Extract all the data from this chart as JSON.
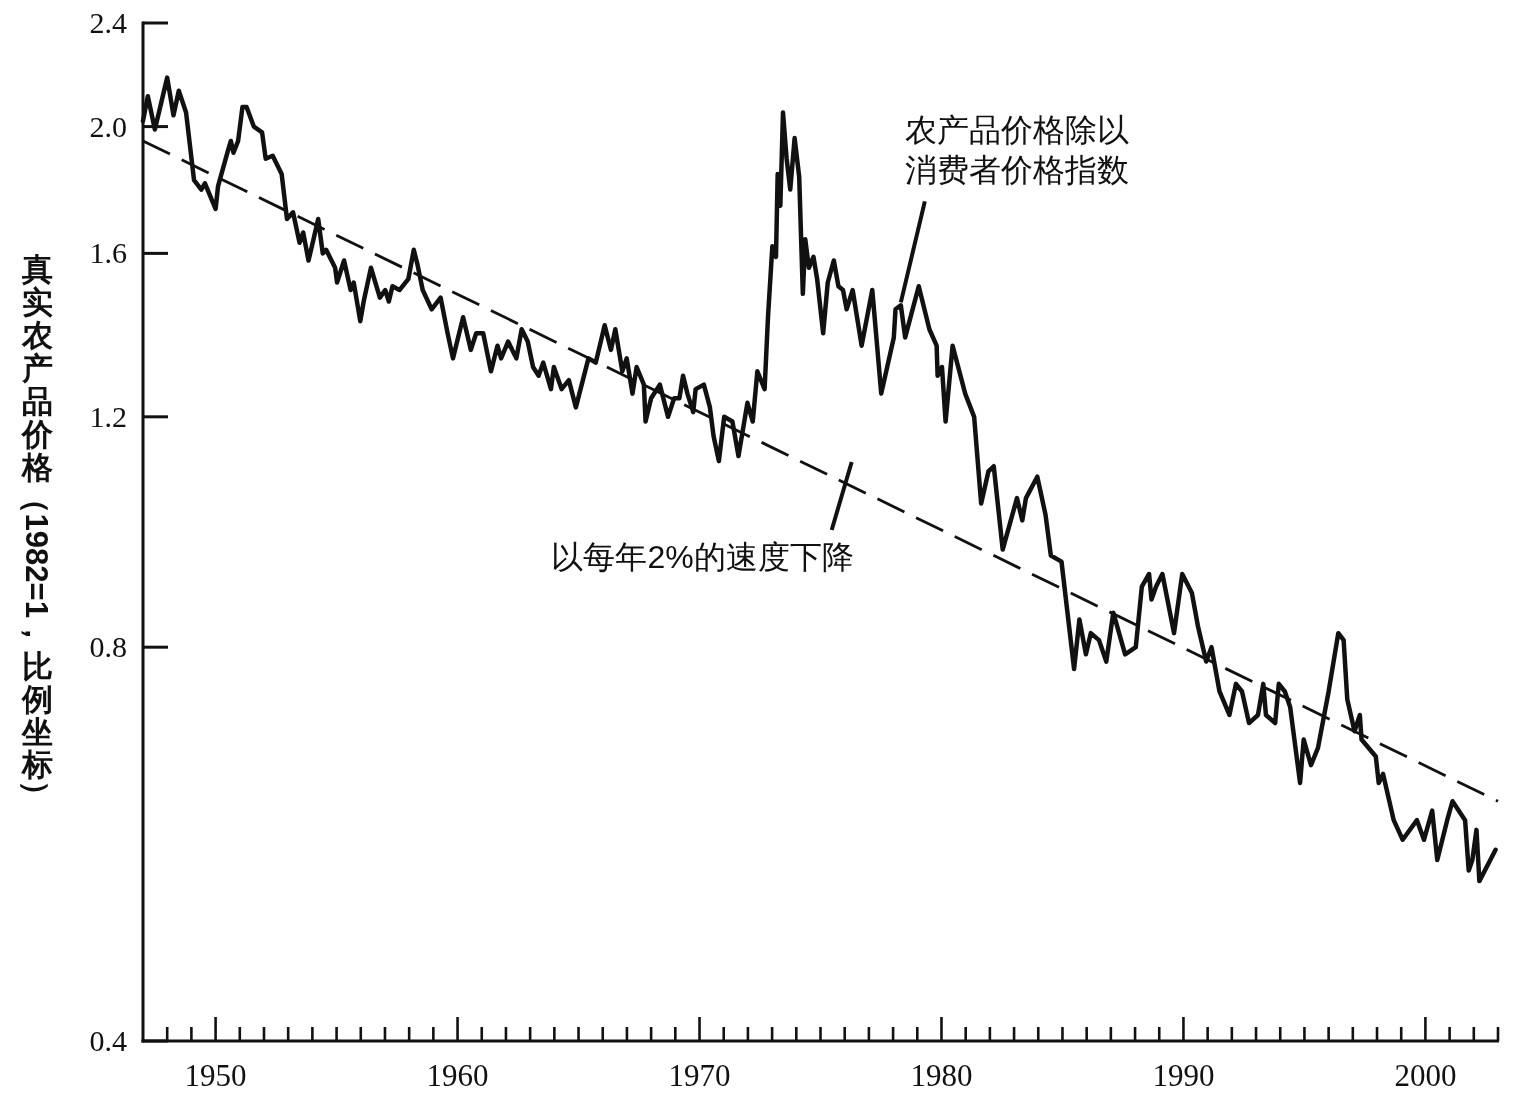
{
  "chart_data": {
    "type": "line",
    "ylabel": "真实农产品价格（1982=1，比例坐标）",
    "log": true,
    "xlim": [
      1947,
      2003
    ],
    "xticks": [
      {
        "value": 1948,
        "label": null
      },
      {
        "value": 1949,
        "label": null
      },
      1950,
      {
        "value": 1951,
        "label": null
      },
      {
        "value": 1952,
        "label": null
      },
      {
        "value": 1953,
        "label": null
      },
      {
        "value": 1954,
        "label": null
      },
      {
        "value": 1955,
        "label": null
      },
      {
        "value": 1956,
        "label": null
      },
      {
        "value": 1957,
        "label": null
      },
      {
        "value": 1958,
        "label": null
      },
      {
        "value": 1959,
        "label": null
      },
      1960,
      {
        "value": 1961,
        "label": null
      },
      {
        "value": 1962,
        "label": null
      },
      {
        "value": 1963,
        "label": null
      },
      {
        "value": 1964,
        "label": null
      },
      {
        "value": 1965,
        "label": null
      },
      {
        "value": 1966,
        "label": null
      },
      {
        "value": 1967,
        "label": null
      },
      {
        "value": 1968,
        "label": null
      },
      {
        "value": 1969,
        "label": null
      },
      1970,
      {
        "value": 1971,
        "label": null
      },
      {
        "value": 1972,
        "label": null
      },
      {
        "value": 1973,
        "label": null
      },
      {
        "value": 1974,
        "label": null
      },
      {
        "value": 1975,
        "label": null
      },
      {
        "value": 1976,
        "label": null
      },
      {
        "value": 1977,
        "label": null
      },
      {
        "value": 1978,
        "label": null
      },
      {
        "value": 1979,
        "label": null
      },
      1980,
      {
        "value": 1981,
        "label": null
      },
      {
        "value": 1982,
        "label": null
      },
      {
        "value": 1983,
        "label": null
      },
      {
        "value": 1984,
        "label": null
      },
      {
        "value": 1985,
        "label": null
      },
      {
        "value": 1986,
        "label": null
      },
      {
        "value": 1987,
        "label": null
      },
      {
        "value": 1988,
        "label": null
      },
      {
        "value": 1989,
        "label": null
      },
      1990,
      {
        "value": 1991,
        "label": null
      },
      {
        "value": 1992,
        "label": null
      },
      {
        "value": 1993,
        "label": null
      },
      {
        "value": 1994,
        "label": null
      },
      {
        "value": 1995,
        "label": null
      },
      {
        "value": 1996,
        "label": null
      },
      {
        "value": 1997,
        "label": null
      },
      {
        "value": 1998,
        "label": null
      },
      {
        "value": 1999,
        "label": null
      },
      2000,
      {
        "value": 2001,
        "label": null
      },
      {
        "value": 2002,
        "label": null
      },
      {
        "value": 2003,
        "label": null
      }
    ],
    "ylim": [
      0.4,
      2.4
    ],
    "yticks": [
      0.4,
      0.8,
      1.2,
      1.6,
      {
        "value": 2,
        "label": "2.0"
      },
      2.4
    ],
    "series": [
      {
        "color": "#111111",
        "line_style": "solid",
        "x": [
          1947.0,
          1947.2,
          1947.49,
          1948.0,
          1948.26,
          1948.48,
          1948.78,
          1949.11,
          1949.41,
          1949.56,
          1950.0,
          1950.1,
          1950.52,
          1950.63,
          1950.74,
          1950.93,
          1951.11,
          1951.28,
          1951.58,
          1951.92,
          1952.07,
          1952.36,
          1952.73,
          1952.95,
          1953.2,
          1953.47,
          1953.62,
          1953.84,
          1953.98,
          1954.24,
          1954.43,
          1954.57,
          1954.94,
          1955.02,
          1955.31,
          1955.58,
          1955.71,
          1955.98,
          1956.12,
          1956.42,
          1956.79,
          1957.01,
          1957.16,
          1957.31,
          1957.6,
          1957.97,
          1958.19,
          1958.34,
          1958.56,
          1958.93,
          1959.3,
          1959.59,
          1959.81,
          1960.23,
          1960.55,
          1960.77,
          1961.06,
          1961.38,
          1961.65,
          1961.8,
          1962.09,
          1962.43,
          1962.65,
          1962.9,
          1963.12,
          1963.35,
          1963.54,
          1963.86,
          1963.98,
          1964.3,
          1964.6,
          1964.89,
          1965.41,
          1965.71,
          1966.08,
          1966.34,
          1966.52,
          1966.81,
          1966.99,
          1967.23,
          1967.4,
          1967.7,
          1967.77,
          1968.0,
          1968.36,
          1968.7,
          1968.95,
          1969.17,
          1969.32,
          1969.5,
          1969.74,
          1969.84,
          1970.18,
          1970.43,
          1970.58,
          1970.8,
          1971.02,
          1971.36,
          1971.61,
          1971.98,
          1972.2,
          1972.39,
          1972.69,
          1972.83,
          1973.01,
          1973.16,
          1973.23,
          1973.34,
          1973.45,
          1973.6,
          1973.75,
          1973.93,
          1974.12,
          1974.27,
          1974.37,
          1974.52,
          1974.71,
          1974.86,
          1975.11,
          1975.3,
          1975.55,
          1975.74,
          1975.93,
          1976.08,
          1976.33,
          1976.7,
          1977.14,
          1977.51,
          1978.03,
          1978.1,
          1978.32,
          1978.5,
          1979.06,
          1979.5,
          1979.8,
          1979.84,
          1980.02,
          1980.17,
          1980.46,
          1980.98,
          1981.35,
          1981.64,
          1981.94,
          1982.16,
          1982.53,
          1983.12,
          1983.34,
          1983.49,
          1983.96,
          1984.3,
          1984.52,
          1984.96,
          1985.48,
          1985.7,
          1985.97,
          1986.17,
          1986.51,
          1986.81,
          1987.1,
          1987.59,
          1988.03,
          1988.28,
          1988.58,
          1988.68,
          1988.87,
          1989.13,
          1989.61,
          1989.95,
          1990.35,
          1990.6,
          1990.94,
          1991.16,
          1991.49,
          1991.9,
          1992.17,
          1992.42,
          1992.71,
          1993.08,
          1993.3,
          1993.41,
          1993.79,
          1993.94,
          1994.19,
          1994.41,
          1994.82,
          1994.97,
          1995.27,
          1995.56,
          1996.0,
          1996.4,
          1996.62,
          1996.77,
          1997.07,
          1997.29,
          1997.36,
          1997.95,
          1998.07,
          1998.25,
          1998.69,
          1999.06,
          1999.65,
          1999.94,
          2000.28,
          2000.49,
          2000.9,
          2001.12,
          2001.64,
          2001.79,
          2001.94,
          2002.11,
          2002.23,
          2002.9
        ],
        "values": [
          2.02,
          2.11,
          1.99,
          2.18,
          2.04,
          2.13,
          2.05,
          1.82,
          1.79,
          1.81,
          1.73,
          1.8,
          1.92,
          1.95,
          1.91,
          1.95,
          2.07,
          2.07,
          2.0,
          1.98,
          1.89,
          1.9,
          1.84,
          1.7,
          1.72,
          1.63,
          1.66,
          1.58,
          1.62,
          1.7,
          1.6,
          1.61,
          1.56,
          1.52,
          1.58,
          1.5,
          1.52,
          1.42,
          1.47,
          1.56,
          1.48,
          1.5,
          1.47,
          1.51,
          1.5,
          1.53,
          1.61,
          1.57,
          1.5,
          1.45,
          1.48,
          1.39,
          1.33,
          1.43,
          1.35,
          1.39,
          1.39,
          1.3,
          1.36,
          1.33,
          1.37,
          1.33,
          1.4,
          1.37,
          1.31,
          1.29,
          1.32,
          1.26,
          1.31,
          1.26,
          1.28,
          1.22,
          1.33,
          1.32,
          1.41,
          1.35,
          1.4,
          1.3,
          1.33,
          1.25,
          1.31,
          1.27,
          1.19,
          1.24,
          1.27,
          1.2,
          1.24,
          1.24,
          1.29,
          1.25,
          1.21,
          1.26,
          1.27,
          1.22,
          1.16,
          1.11,
          1.2,
          1.19,
          1.12,
          1.23,
          1.19,
          1.3,
          1.26,
          1.43,
          1.62,
          1.59,
          1.84,
          1.74,
          2.05,
          1.89,
          1.79,
          1.96,
          1.83,
          1.49,
          1.64,
          1.56,
          1.59,
          1.53,
          1.39,
          1.52,
          1.58,
          1.51,
          1.5,
          1.45,
          1.5,
          1.36,
          1.5,
          1.25,
          1.38,
          1.45,
          1.46,
          1.38,
          1.51,
          1.4,
          1.36,
          1.29,
          1.31,
          1.19,
          1.36,
          1.25,
          1.2,
          1.03,
          1.09,
          1.1,
          0.95,
          1.04,
          1.0,
          1.04,
          1.08,
          1.01,
          0.94,
          0.93,
          0.77,
          0.84,
          0.79,
          0.82,
          0.81,
          0.78,
          0.85,
          0.79,
          0.8,
          0.89,
          0.91,
          0.87,
          0.89,
          0.91,
          0.82,
          0.91,
          0.88,
          0.83,
          0.78,
          0.8,
          0.74,
          0.71,
          0.75,
          0.74,
          0.7,
          0.71,
          0.75,
          0.71,
          0.7,
          0.75,
          0.74,
          0.72,
          0.63,
          0.68,
          0.65,
          0.67,
          0.74,
          0.82,
          0.81,
          0.73,
          0.69,
          0.71,
          0.68,
          0.66,
          0.63,
          0.64,
          0.59,
          0.57,
          0.59,
          0.57,
          0.6,
          0.55,
          0.59,
          0.61,
          0.59,
          0.54,
          0.55,
          0.58,
          0.53,
          0.56
        ]
      },
      {
        "type": "line",
        "color": "#111111",
        "line_style": "dashed",
        "x": [
          1947,
          2003
        ],
        "values": [
          1.95,
          0.61
        ]
      }
    ],
    "annotations": [
      {
        "text": "农产品价格除以消费者价格指数",
        "x": 1978.32,
        "y": 1.46
      },
      {
        "text": "以每年2%的速度下降",
        "x": 1976.0,
        "y": 1.07
      }
    ]
  }
}
